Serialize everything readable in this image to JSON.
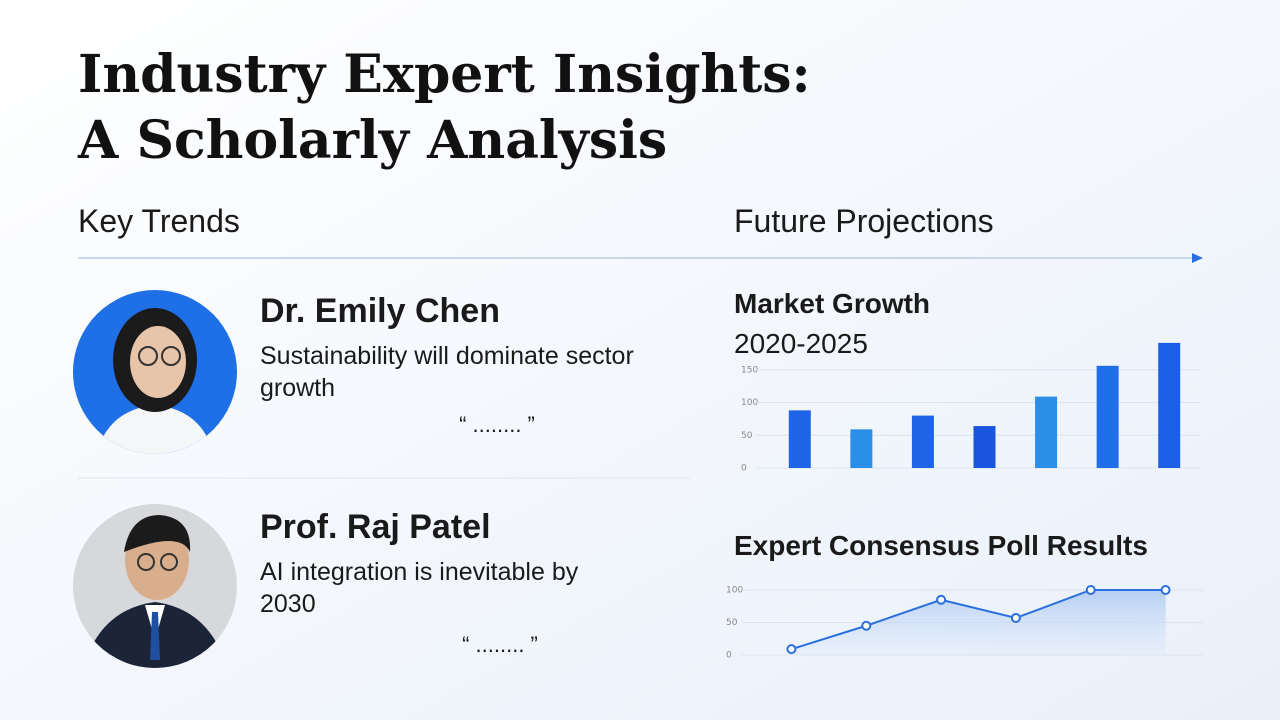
{
  "header": {
    "title_line1": "Industry Expert Insights:",
    "title_line2": "A Scholarly Analysis"
  },
  "sections": {
    "left": "Key Trends",
    "right": "Future Projections"
  },
  "experts": [
    {
      "name": "Dr. Emily Chen",
      "quote_line1": "Sustainability will dominate sector",
      "quote_line2": "growth",
      "quote_marks": "“ ........ ”"
    },
    {
      "name": "Prof. Raj Patel",
      "quote_line1": "AI integration is inevitable by",
      "quote_line2": "2030",
      "quote_marks": "“ ........ ”"
    }
  ],
  "chart_data": [
    {
      "type": "bar",
      "title": "Market Growth",
      "subtitle": "2020-2025",
      "categories": [
        null,
        null,
        null,
        null,
        null,
        null,
        null
      ],
      "values": [
        88,
        59,
        80,
        64,
        109,
        156,
        191
      ],
      "colors": [
        "#1f63e6",
        "#2b8fea",
        "#1f63e6",
        "#1a55dd",
        "#2b8fea",
        "#1f6fe8",
        "#1a5fe6"
      ],
      "ylim": [
        0,
        200
      ],
      "yticks": [
        0,
        50,
        100,
        150
      ],
      "grid": true
    },
    {
      "type": "line",
      "title": "Expert Consensus Poll Results",
      "categories": [
        null,
        null,
        null,
        null,
        null,
        null
      ],
      "values": [
        9,
        45,
        85,
        57,
        100,
        100
      ],
      "color": "#2a6fe0",
      "ylim": [
        0,
        100
      ],
      "yticks": [
        0,
        50,
        100
      ],
      "grid": true
    }
  ]
}
